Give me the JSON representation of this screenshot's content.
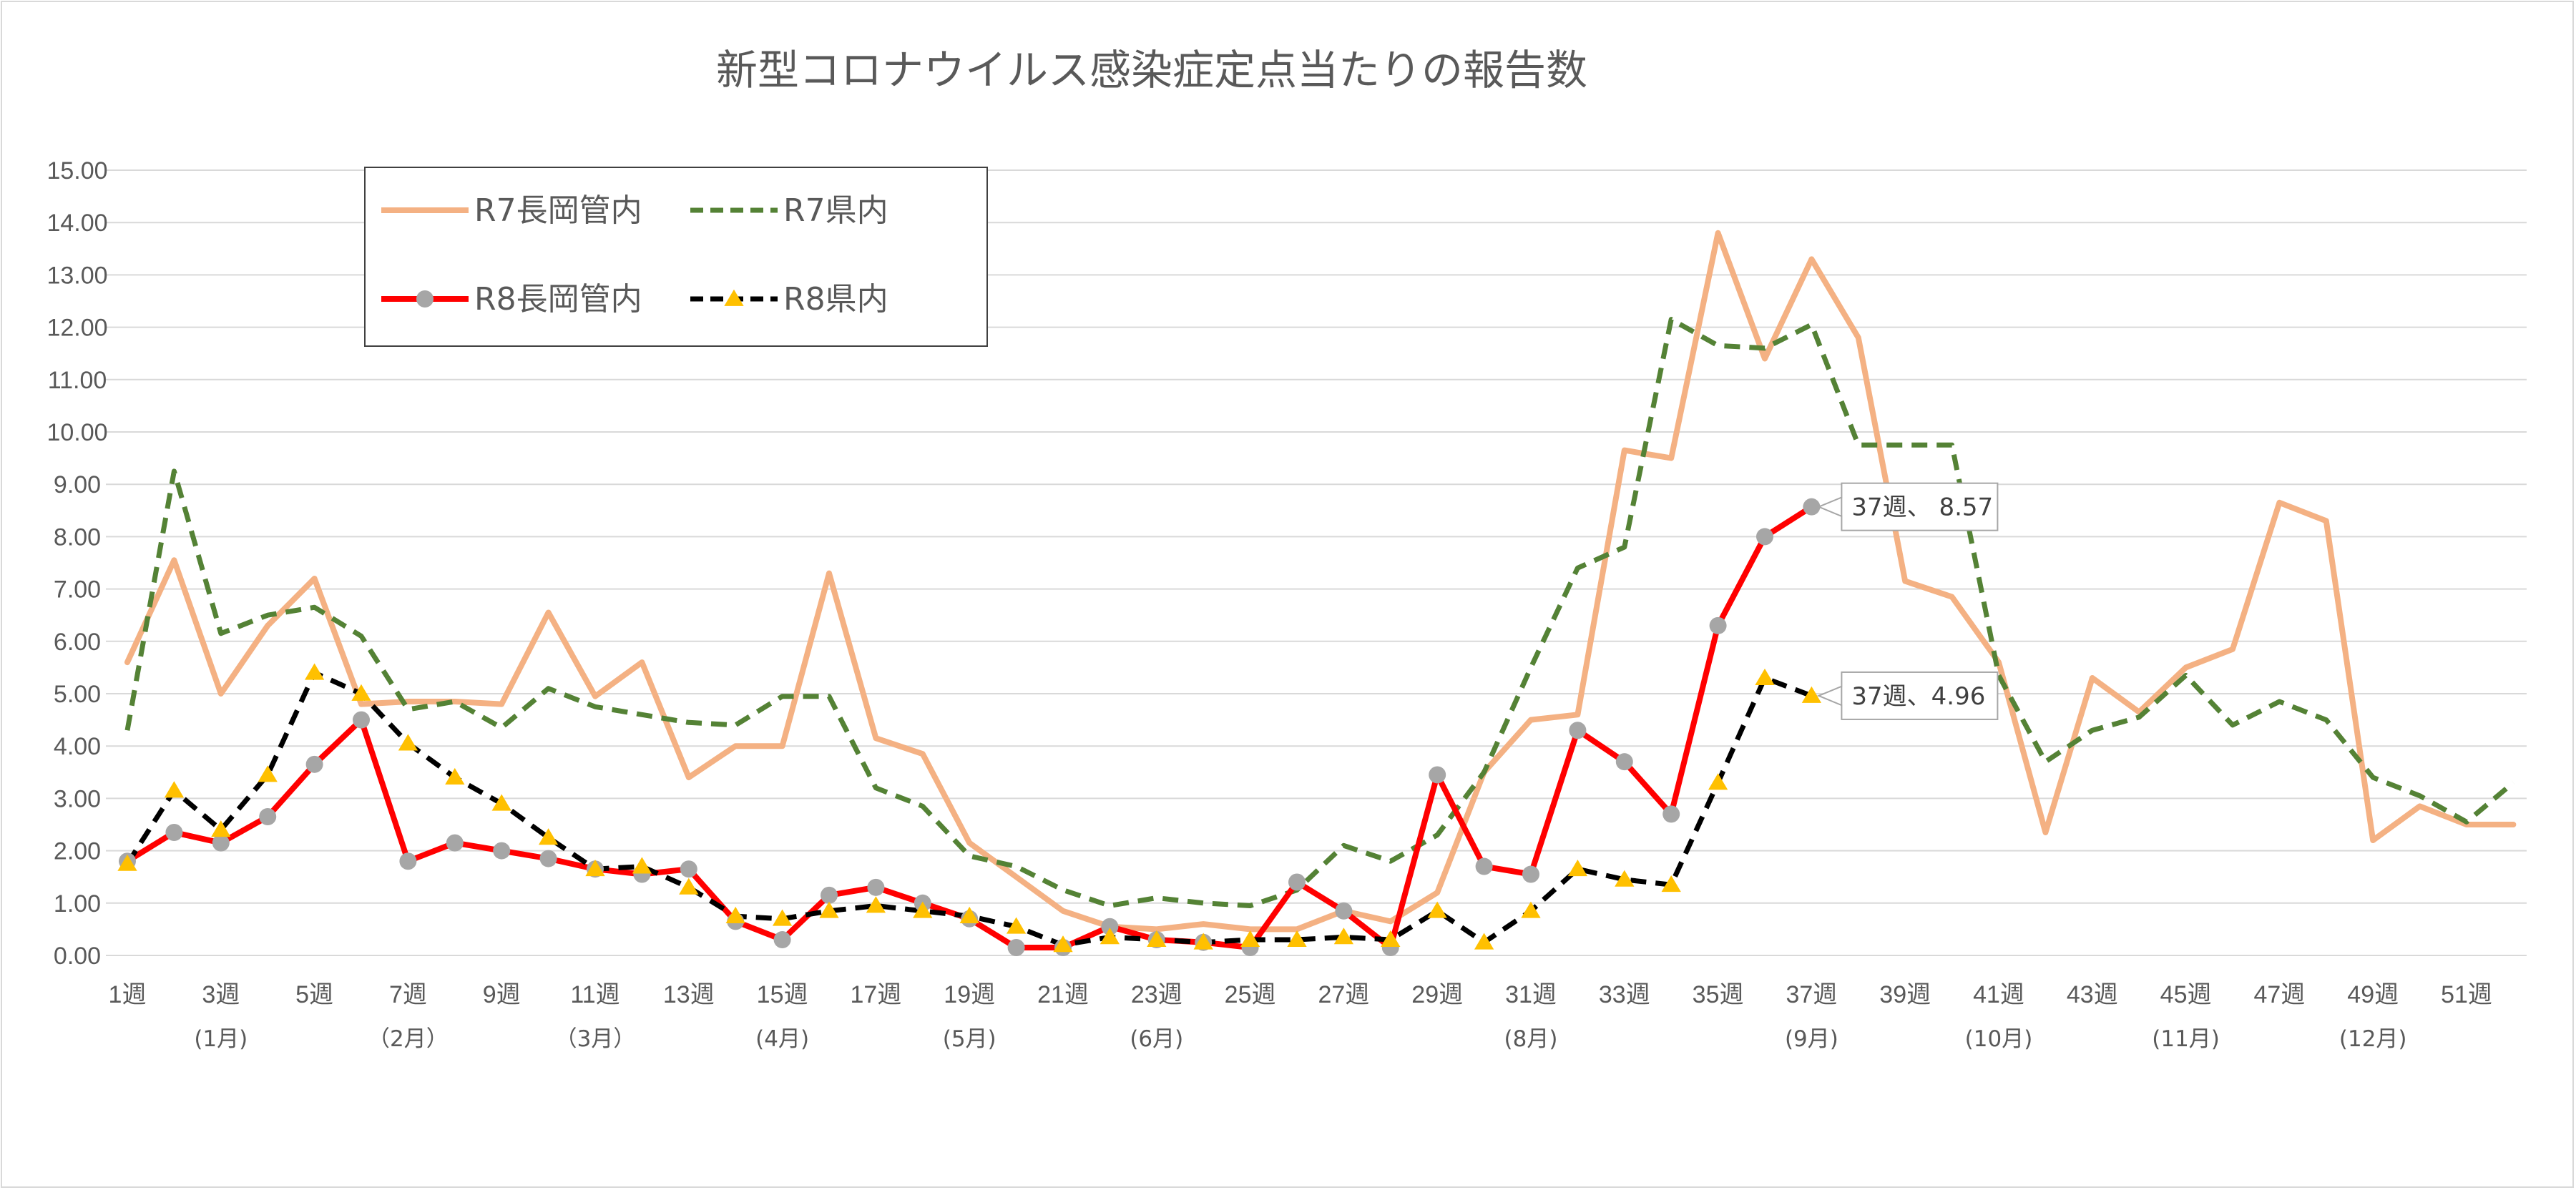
{
  "chart_data": {
    "type": "line",
    "title": "新型コロナウイルス感染症定点当たりの報告数",
    "ylim": [
      0,
      15
    ],
    "y_ticks": [
      "0.00",
      "1.00",
      "2.00",
      "3.00",
      "4.00",
      "5.00",
      "6.00",
      "7.00",
      "8.00",
      "9.00",
      "10.00",
      "11.00",
      "12.00",
      "13.00",
      "14.00",
      "15.00"
    ],
    "x_weeks": [
      1,
      2,
      3,
      4,
      5,
      6,
      7,
      8,
      9,
      10,
      11,
      12,
      13,
      14,
      15,
      16,
      17,
      18,
      19,
      20,
      21,
      22,
      23,
      24,
      25,
      26,
      27,
      28,
      29,
      30,
      31,
      32,
      33,
      34,
      35,
      36,
      37,
      38,
      39,
      40,
      41,
      42,
      43,
      44,
      45,
      46,
      47,
      48,
      49,
      50,
      51,
      52
    ],
    "x_tick_labels": [
      {
        "week": 1,
        "label": "1週"
      },
      {
        "week": 3,
        "label": "3週"
      },
      {
        "week": 5,
        "label": "5週"
      },
      {
        "week": 7,
        "label": "7週"
      },
      {
        "week": 9,
        "label": "9週"
      },
      {
        "week": 11,
        "label": "11週"
      },
      {
        "week": 13,
        "label": "13週"
      },
      {
        "week": 15,
        "label": "15週"
      },
      {
        "week": 17,
        "label": "17週"
      },
      {
        "week": 19,
        "label": "19週"
      },
      {
        "week": 21,
        "label": "21週"
      },
      {
        "week": 23,
        "label": "23週"
      },
      {
        "week": 25,
        "label": "25週"
      },
      {
        "week": 27,
        "label": "27週"
      },
      {
        "week": 29,
        "label": "29週"
      },
      {
        "week": 31,
        "label": "31週"
      },
      {
        "week": 33,
        "label": "33週"
      },
      {
        "week": 35,
        "label": "35週"
      },
      {
        "week": 37,
        "label": "37週"
      },
      {
        "week": 39,
        "label": "39週"
      },
      {
        "week": 41,
        "label": "41週"
      },
      {
        "week": 43,
        "label": "43週"
      },
      {
        "week": 45,
        "label": "45週"
      },
      {
        "week": 47,
        "label": "47週"
      },
      {
        "week": 49,
        "label": "49週"
      },
      {
        "week": 51,
        "label": "51週"
      }
    ],
    "month_labels": [
      {
        "week": 3,
        "label": "(1月)"
      },
      {
        "week": 7,
        "label": "（2月）"
      },
      {
        "week": 11,
        "label": "（3月）"
      },
      {
        "week": 15,
        "label": "(4月)"
      },
      {
        "week": 19,
        "label": "(5月)"
      },
      {
        "week": 23,
        "label": "(6月)"
      },
      {
        "week": 31,
        "label": "(8月)"
      },
      {
        "week": 37,
        "label": "(9月)"
      },
      {
        "week": 41,
        "label": "(10月)"
      },
      {
        "week": 45,
        "label": "(11月)"
      },
      {
        "week": 49,
        "label": "(12月)"
      }
    ],
    "series": [
      {
        "name": "R7長岡管内",
        "color": "#f4b183",
        "style": "solid",
        "marker": "none",
        "values": [
          5.6,
          7.55,
          5.0,
          6.3,
          7.2,
          4.8,
          4.85,
          4.85,
          4.8,
          6.55,
          4.95,
          5.6,
          3.4,
          4.0,
          4.0,
          7.3,
          4.15,
          3.85,
          2.15,
          1.5,
          0.85,
          0.55,
          0.5,
          0.6,
          0.5,
          0.5,
          0.85,
          0.65,
          1.2,
          3.5,
          4.5,
          4.6,
          9.65,
          9.5,
          13.8,
          11.4,
          13.3,
          11.8,
          7.15,
          6.85,
          5.6,
          2.35,
          5.3,
          4.65,
          5.5,
          5.85,
          8.65,
          8.3,
          2.2,
          2.85,
          2.5,
          2.5
        ]
      },
      {
        "name": "R7県内",
        "color": "#548235",
        "style": "dashed",
        "marker": "none",
        "values": [
          4.3,
          9.25,
          6.15,
          6.5,
          6.65,
          6.1,
          4.7,
          4.85,
          4.35,
          5.1,
          4.75,
          4.6,
          4.45,
          4.4,
          4.95,
          4.95,
          3.2,
          2.85,
          1.9,
          1.7,
          1.25,
          0.95,
          1.1,
          1.0,
          0.95,
          1.25,
          2.1,
          1.8,
          2.3,
          3.5,
          5.5,
          7.4,
          7.8,
          12.15,
          11.65,
          11.6,
          12.05,
          9.75,
          9.75,
          9.75,
          5.35,
          3.7,
          4.3,
          4.55,
          5.35,
          4.4,
          4.85,
          4.5,
          3.4,
          3.05,
          2.55,
          3.3
        ]
      },
      {
        "name": "R8長岡管内",
        "color": "#ff0000",
        "style": "solid",
        "marker": "circle",
        "values": [
          1.8,
          2.35,
          2.15,
          2.65,
          3.65,
          4.5,
          1.8,
          2.15,
          2.0,
          1.85,
          1.65,
          1.55,
          1.65,
          0.65,
          0.3,
          1.15,
          1.3,
          1.0,
          0.7,
          0.15,
          0.15,
          0.55,
          0.3,
          0.25,
          0.15,
          1.4,
          0.85,
          0.15,
          3.45,
          1.7,
          1.55,
          4.3,
          3.7,
          2.7,
          6.3,
          8.0,
          8.57
        ]
      },
      {
        "name": "R8県内",
        "color": "#000000",
        "style": "dashed",
        "marker": "triangle",
        "values": [
          1.75,
          3.15,
          2.4,
          3.45,
          5.4,
          5.0,
          4.05,
          3.4,
          2.9,
          2.25,
          1.65,
          1.7,
          1.3,
          0.75,
          0.7,
          0.85,
          0.95,
          0.85,
          0.75,
          0.55,
          0.2,
          0.35,
          0.3,
          0.25,
          0.3,
          0.3,
          0.35,
          0.3,
          0.85,
          0.25,
          0.85,
          1.65,
          1.45,
          1.35,
          3.3,
          5.3,
          4.96
        ]
      }
    ],
    "marker_color": "#a6a6a6",
    "triangle_color": "#ffc000",
    "legend": {
      "position": "top-left"
    },
    "callouts": [
      {
        "series": "R8長岡管内",
        "week": 37,
        "label": "37週、 8.57"
      },
      {
        "series": "R8県内",
        "week": 37,
        "label": "37週、4.96"
      }
    ],
    "grid": true
  }
}
